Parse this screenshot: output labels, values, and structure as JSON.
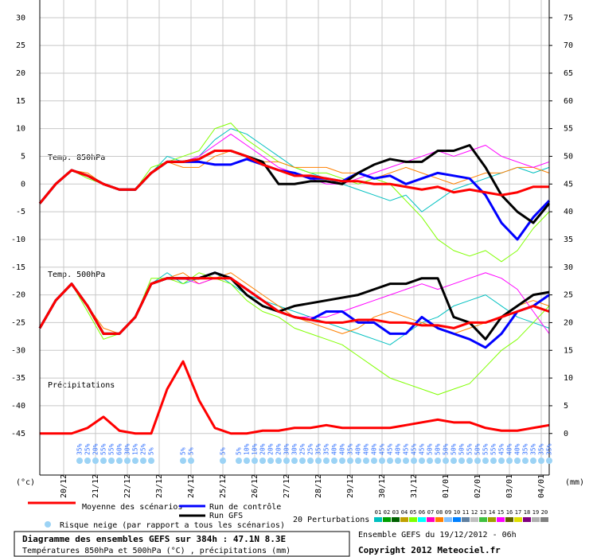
{
  "chart_data": {
    "type": "line",
    "x": [
      0,
      12,
      24,
      36,
      48,
      60,
      72,
      84,
      96,
      108,
      120,
      132,
      144,
      156,
      168,
      180,
      192,
      204,
      216,
      228,
      240,
      252,
      264,
      276,
      288,
      300,
      312,
      324,
      336,
      348,
      360,
      372,
      384
    ],
    "xlim": [
      0,
      384
    ],
    "xticks": [
      {
        "value": 18,
        "label": "20/12"
      },
      {
        "value": 42,
        "label": "21/12"
      },
      {
        "value": 66,
        "label": "22/12"
      },
      {
        "value": 90,
        "label": "23/12"
      },
      {
        "value": 114,
        "label": "24/12"
      },
      {
        "value": 138,
        "label": "25/12"
      },
      {
        "value": 162,
        "label": "26/12"
      },
      {
        "value": 186,
        "label": "27/12"
      },
      {
        "value": 210,
        "label": "28/12"
      },
      {
        "value": 234,
        "label": "29/12"
      },
      {
        "value": 258,
        "label": "30/12"
      },
      {
        "value": 282,
        "label": "31/12"
      },
      {
        "value": 306,
        "label": "01/01"
      },
      {
        "value": 330,
        "label": "02/01"
      },
      {
        "value": 354,
        "label": "03/01"
      },
      {
        "value": 378,
        "label": "04/01"
      }
    ],
    "ylim": [
      -52.5,
      33.2
    ],
    "yticks": [
      30,
      25,
      20,
      15,
      10,
      5,
      0,
      -5,
      -10,
      -15,
      -20,
      -25,
      -30,
      -35,
      -40,
      -45
    ],
    "y2lim": [
      -7.5,
      78.2
    ],
    "y2ticks": [
      75,
      70,
      65,
      60,
      55,
      50,
      45,
      40,
      35,
      30,
      25,
      20,
      15,
      10,
      5,
      0
    ],
    "ylabel": "(°c)",
    "y2label": "(mm)",
    "annotations": [
      "Temp. 850hPa",
      "Temp. 500hPa",
      "Précipitations"
    ],
    "grid": true,
    "series": [
      {
        "name": "Moyenne des scénarios",
        "color": "#ff0000",
        "t850": [
          -3.5,
          0,
          2.5,
          1.5,
          0,
          -1,
          -1,
          2,
          4,
          4,
          4.5,
          6,
          6,
          5,
          3.5,
          2.5,
          1.5,
          1.5,
          1,
          0.5,
          0.5,
          0,
          0,
          -0.5,
          -1,
          -0.5,
          -1.5,
          -1,
          -1.5,
          -2,
          -1.5,
          -0.5,
          -0.5
        ],
        "t500": [
          -26,
          -21,
          -18,
          -22,
          -27,
          -27,
          -24,
          -18,
          -17,
          -17,
          -17,
          -17,
          -17,
          -19,
          -21,
          -23,
          -24,
          -24.5,
          -25,
          -25,
          -24.5,
          -24.5,
          -25,
          -25,
          -25.5,
          -25.5,
          -26,
          -25,
          -25,
          -24,
          -23,
          -22,
          -23
        ],
        "precip": [
          0,
          0,
          0,
          1,
          3,
          0.5,
          0,
          0,
          8,
          13,
          6,
          1,
          0,
          0,
          0.5,
          0.5,
          1,
          1,
          1.5,
          1,
          1,
          1,
          1,
          1.5,
          2,
          2.5,
          2,
          2,
          1,
          0.5,
          0.5,
          1,
          1.5
        ]
      },
      {
        "name": "Run de contrôle",
        "color": "#0000ff",
        "t850": [
          -3.5,
          0,
          2.5,
          1.5,
          0,
          -1,
          -1,
          2,
          4,
          4,
          4,
          3.5,
          3.5,
          4.5,
          3.5,
          2.5,
          2,
          1,
          1,
          0.5,
          2,
          1,
          1.5,
          0,
          1,
          2,
          1.5,
          1,
          -2,
          -7,
          -10,
          -6,
          -3
        ],
        "t500": [
          -26,
          -21,
          -18,
          -22,
          -27,
          -27,
          -24,
          -18,
          -17,
          -17,
          -17,
          -16,
          -17,
          -19,
          -21,
          -23,
          -24,
          -24.5,
          -23,
          -23,
          -25,
          -25,
          -27,
          -27,
          -24,
          -26,
          -27,
          -28,
          -29.5,
          -27,
          -23,
          -22,
          -20
        ]
      },
      {
        "name": "Run GFS",
        "color": "#000000",
        "t850": [
          -3.5,
          0,
          2.5,
          1.5,
          0,
          -1,
          -1,
          2,
          4,
          4,
          4.5,
          6,
          6,
          5,
          4,
          0,
          0,
          0.5,
          0.5,
          0,
          2,
          3.5,
          4.5,
          4,
          4,
          6,
          6,
          7,
          3,
          -2,
          -5,
          -7,
          -3.5
        ],
        "t500": [
          -26,
          -21,
          -18,
          -22,
          -27,
          -27,
          -24,
          -18,
          -17,
          -17,
          -17,
          -16,
          -17,
          -20,
          -22,
          -23,
          -22,
          -21.5,
          -21,
          -20.5,
          -20,
          -19,
          -18,
          -18,
          -17,
          -17,
          -24,
          -25,
          -28,
          -24,
          -22,
          -20,
          -19.5
        ]
      }
    ],
    "perturbations": {
      "label": "20 Perturbations",
      "members": [
        {
          "name": "01",
          "color": "#00c0c0",
          "t850": [
            -3.5,
            0,
            2.5,
            1.5,
            0,
            -1,
            -1,
            2,
            5,
            4,
            5,
            8,
            10,
            9,
            7,
            5,
            3,
            2,
            1,
            0,
            -1,
            -2,
            -3,
            -2,
            -5,
            -3,
            -1,
            0,
            1,
            2,
            3,
            2,
            3
          ],
          "t500": [
            -26,
            -21,
            -18,
            -22,
            -27,
            -27,
            -24,
            -18,
            -16,
            -18,
            -17,
            -16,
            -18,
            -20,
            -21,
            -22,
            -23,
            -24,
            -25,
            -26,
            -27,
            -28,
            -29,
            -27,
            -25,
            -24,
            -22,
            -21,
            -20,
            -22,
            -24,
            -25,
            -26
          ]
        },
        {
          "name": "02",
          "color": "#00a000"
        },
        {
          "name": "03",
          "color": "#006000"
        },
        {
          "name": "04",
          "color": "#c0a000"
        },
        {
          "name": "05",
          "color": "#80ff00",
          "t850": [
            -3.5,
            0,
            2.5,
            1,
            0,
            -1,
            -1,
            3,
            4,
            5,
            6,
            10,
            11,
            8,
            6,
            4,
            3,
            2,
            2,
            1,
            0,
            1,
            0,
            -3,
            -6,
            -10,
            -12,
            -13,
            -12,
            -14,
            -12,
            -8,
            -5
          ],
          "t500": [
            -26,
            -21,
            -18,
            -23,
            -28,
            -27,
            -24,
            -17,
            -17,
            -18,
            -16,
            -17,
            -18,
            -21,
            -23,
            -24,
            -26,
            -27,
            -28,
            -29,
            -31,
            -33,
            -35,
            -36,
            -37,
            -38,
            -37,
            -36,
            -33,
            -30,
            -28,
            -25,
            -22
          ]
        },
        {
          "name": "06",
          "color": "#00ffff"
        },
        {
          "name": "07",
          "color": "#ff00c0"
        },
        {
          "name": "08",
          "color": "#ff8000",
          "t850": [
            -3.5,
            0,
            2.5,
            2,
            0,
            -1,
            -1,
            2,
            4,
            3,
            3,
            5,
            6,
            5,
            4,
            4,
            3,
            3,
            3,
            2,
            2,
            1,
            2,
            3,
            2,
            1,
            0,
            1,
            2,
            2,
            3,
            3,
            2
          ],
          "t500": [
            -26,
            -21,
            -18,
            -22,
            -26,
            -27,
            -24,
            -18,
            -17,
            -16,
            -18,
            -17,
            -16,
            -18,
            -20,
            -22,
            -24,
            -25,
            -26,
            -27,
            -26,
            -24,
            -23,
            -24,
            -25,
            -26,
            -27,
            -26,
            -25,
            -24,
            -22,
            -21,
            -22
          ]
        },
        {
          "name": "09",
          "color": "#80c0ff"
        },
        {
          "name": "10",
          "color": "#0080ff"
        },
        {
          "name": "11",
          "color": "#6080a0"
        },
        {
          "name": "12",
          "color": "#c0c0c0"
        },
        {
          "name": "13",
          "color": "#40c040"
        },
        {
          "name": "14",
          "color": "#a0a000"
        },
        {
          "name": "15",
          "color": "#ff00ff",
          "t850": [
            -3.5,
            0,
            2.5,
            1.5,
            0,
            -1,
            -1,
            2,
            4,
            4,
            5,
            7,
            9,
            7,
            5,
            3,
            2,
            1,
            0,
            0,
            1,
            2,
            3,
            4,
            5,
            6,
            5,
            6,
            7,
            5,
            4,
            3,
            4
          ],
          "t500": [
            -26,
            -21,
            -18,
            -22,
            -27,
            -27,
            -24,
            -18,
            -17,
            -17,
            -18,
            -17,
            -17,
            -19,
            -21,
            -23,
            -24,
            -24,
            -24,
            -23,
            -22,
            -21,
            -20,
            -19,
            -18,
            -19,
            -18,
            -17,
            -16,
            -17,
            -19,
            -23,
            -27
          ]
        },
        {
          "name": "16",
          "color": "#606000"
        },
        {
          "name": "17",
          "color": "#e0e000"
        },
        {
          "name": "18",
          "color": "#800080"
        },
        {
          "name": "19",
          "color": "#b0b0b0"
        },
        {
          "name": "20",
          "color": "#808080"
        }
      ]
    },
    "snow_risk": {
      "label": "Risque neige (par rapport a tous les scénarios)",
      "x": [
        30,
        36,
        42,
        48,
        54,
        60,
        66,
        72,
        78,
        84,
        108,
        114,
        138,
        150,
        156,
        162,
        168,
        174,
        180,
        186,
        192,
        198,
        204,
        210,
        216,
        222,
        228,
        234,
        240,
        246,
        252,
        258,
        264,
        270,
        276,
        282,
        288,
        294,
        300,
        306,
        312,
        318,
        324,
        330,
        336,
        342,
        348,
        354,
        360,
        366,
        372,
        378,
        384
      ],
      "values": [
        35,
        25,
        20,
        55,
        55,
        60,
        30,
        15,
        25,
        5,
        5,
        5,
        5,
        5,
        10,
        10,
        20,
        20,
        20,
        30,
        30,
        25,
        25,
        35,
        35,
        40,
        40,
        35,
        40,
        40,
        40,
        45,
        45,
        40,
        45,
        45,
        45,
        50,
        50,
        50,
        50,
        50,
        55,
        50,
        55,
        55,
        45,
        40,
        40,
        35,
        35,
        35,
        35
      ],
      "value_labels": [
        "35%",
        "25%",
        "20%",
        "55%",
        "55%",
        "60%",
        "30%",
        "15%",
        "25%",
        "5%",
        "5%",
        "5%",
        "5%",
        "5%",
        "10%",
        "10%",
        "20%",
        "20%",
        "20%",
        "30%",
        "30%",
        "25%",
        "25%",
        "35%",
        "35%",
        "40%",
        "40%",
        "35%",
        "40%",
        "40%",
        "40%",
        "45%",
        "45%",
        "40%",
        "45%",
        "45%",
        "45%",
        "50%",
        "50%",
        "50%",
        "50%",
        "50%",
        "55%",
        "50%",
        "55%",
        "55%",
        "45%",
        "40%",
        "40%",
        "35%",
        "35%",
        "35%",
        "35%"
      ]
    },
    "footer": {
      "title": "Diagramme des ensembles GEFS sur 384h : 47.1N 8.3E",
      "subtitle": "Températures 850hPa et 500hPa (°C) , précipitations (mm)",
      "run": "Ensemble GEFS du 19/12/2012 - 06h",
      "copyright": "Copyright 2012 Meteociel.fr"
    }
  }
}
